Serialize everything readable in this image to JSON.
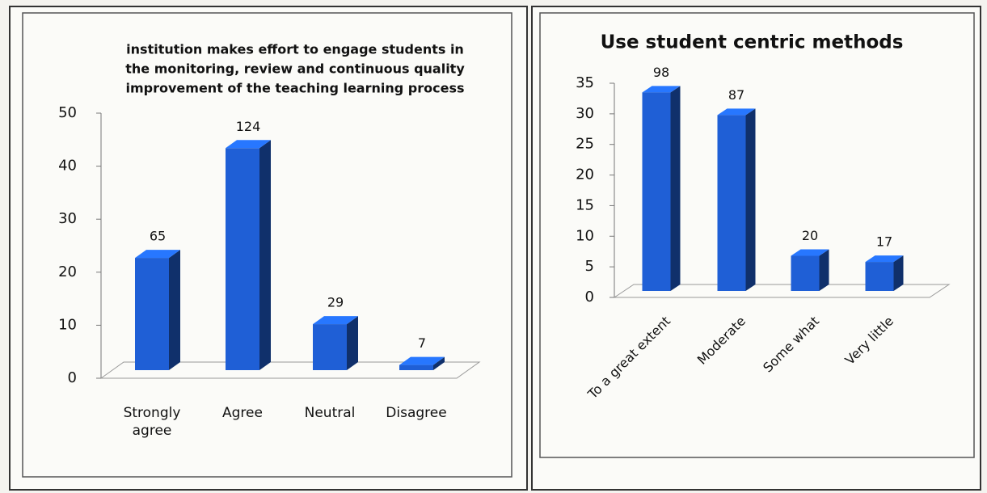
{
  "chart_data": [
    {
      "type": "bar3d",
      "title": [
        "institution makes effort to engage students in",
        "the monitoring, review and continuous quality",
        "improvement of the teaching learning process"
      ],
      "categories": [
        "Strongly agree",
        "Agree",
        "Neutral",
        "Disagree"
      ],
      "values": [
        22.7,
        43.4,
        10.2,
        2.5
      ],
      "counts": [
        65,
        124,
        29,
        7
      ],
      "color": "#1f5fd6",
      "ylim": [
        0,
        50
      ],
      "yticks": [
        0,
        10,
        20,
        30,
        40,
        50
      ]
    },
    {
      "type": "bar3d",
      "title": [
        "Use student centric methods"
      ],
      "categories": [
        "To a great extent",
        "Moderate",
        "Some what",
        "Very little"
      ],
      "values": [
        33.5,
        29.8,
        6.8,
        5.8
      ],
      "counts": [
        98,
        87,
        20,
        17
      ],
      "color": "#1f5fd6",
      "ylim": [
        0,
        35
      ],
      "yticks": [
        0,
        5,
        10,
        15,
        20,
        25,
        30,
        35
      ]
    }
  ]
}
